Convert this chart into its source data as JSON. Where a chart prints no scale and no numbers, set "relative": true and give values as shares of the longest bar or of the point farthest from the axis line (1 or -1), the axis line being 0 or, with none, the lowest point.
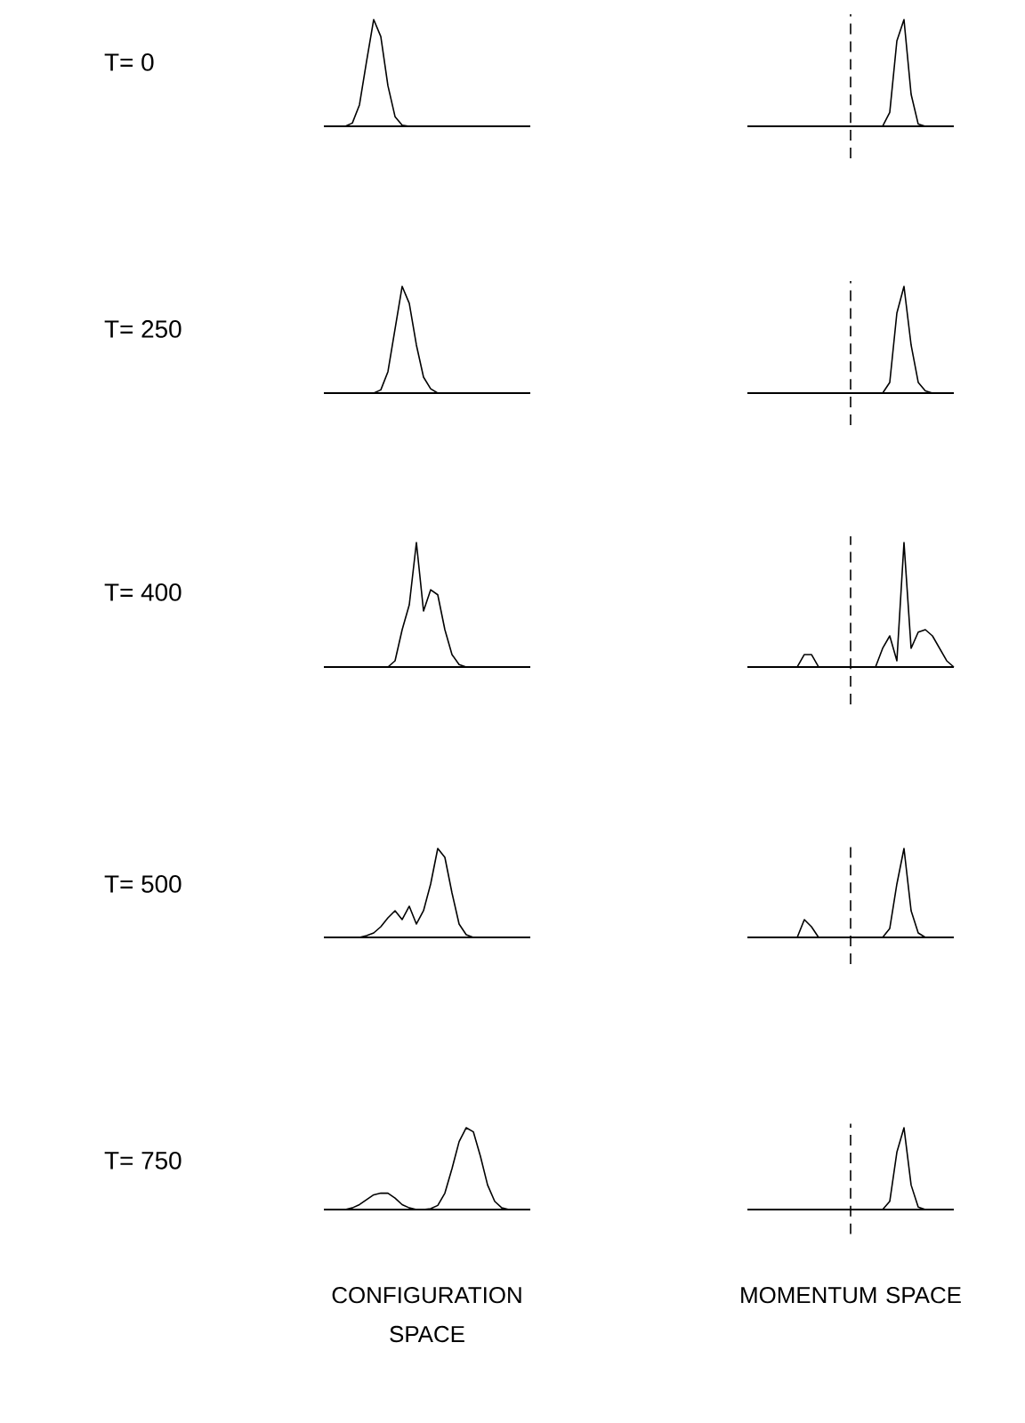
{
  "chart_data": [
    {
      "type": "line",
      "relative": true,
      "ylabel": "T= 0",
      "color": "#000000",
      "marker": "none",
      "categories": [
        null,
        null,
        null,
        null,
        null,
        null,
        null,
        null,
        null,
        null,
        null,
        null,
        null,
        null,
        null,
        null,
        null,
        null,
        null,
        null,
        null,
        null,
        null,
        null,
        null,
        null,
        null,
        null,
        null,
        null
      ],
      "values": [
        0,
        0,
        0,
        0,
        0.03,
        0.2,
        0.61,
        1,
        0.84,
        0.38,
        0.09,
        0.01,
        0,
        0,
        0,
        0,
        0,
        0,
        0,
        0,
        0,
        0,
        0,
        0,
        0,
        0,
        0,
        0,
        0,
        0
      ]
    },
    {
      "type": "line",
      "relative": true,
      "color": "#000000",
      "marker": "none",
      "categories": [
        null,
        null,
        null,
        null,
        null,
        null,
        null,
        null,
        null,
        null,
        null,
        null,
        null,
        null,
        null,
        null,
        null,
        null,
        null,
        null,
        null,
        null,
        null,
        null,
        null,
        null,
        null,
        null,
        null,
        null
      ],
      "values": [
        0,
        0,
        0,
        0,
        0,
        0,
        0,
        0,
        0,
        0,
        0,
        0,
        0,
        0,
        0,
        0,
        0,
        0,
        0,
        0,
        0.13,
        0.8,
        1,
        0.3,
        0.02,
        0,
        0,
        0,
        0,
        0
      ]
    },
    {
      "type": "line",
      "relative": true,
      "ylabel": "T= 250",
      "color": "#000000",
      "marker": "none",
      "categories": [
        null,
        null,
        null,
        null,
        null,
        null,
        null,
        null,
        null,
        null,
        null,
        null,
        null,
        null,
        null,
        null,
        null,
        null,
        null,
        null,
        null,
        null,
        null,
        null,
        null,
        null,
        null,
        null,
        null,
        null
      ],
      "values": [
        0,
        0,
        0,
        0,
        0,
        0,
        0,
        0,
        0.03,
        0.2,
        0.6,
        1,
        0.84,
        0.45,
        0.15,
        0.04,
        0,
        0,
        0,
        0,
        0,
        0,
        0,
        0,
        0,
        0,
        0,
        0,
        0,
        0
      ]
    },
    {
      "type": "line",
      "relative": true,
      "color": "#000000",
      "marker": "none",
      "categories": [
        null,
        null,
        null,
        null,
        null,
        null,
        null,
        null,
        null,
        null,
        null,
        null,
        null,
        null,
        null,
        null,
        null,
        null,
        null,
        null,
        null,
        null,
        null,
        null,
        null,
        null,
        null,
        null,
        null,
        null
      ],
      "values": [
        0,
        0,
        0,
        0,
        0,
        0,
        0,
        0,
        0,
        0,
        0,
        0,
        0,
        0,
        0,
        0,
        0,
        0,
        0,
        0,
        0.1,
        0.75,
        1,
        0.45,
        0.1,
        0.02,
        0,
        0,
        0,
        0
      ]
    },
    {
      "type": "line",
      "relative": true,
      "ylabel": "T= 400",
      "color": "#000000",
      "marker": "none",
      "categories": [
        null,
        null,
        null,
        null,
        null,
        null,
        null,
        null,
        null,
        null,
        null,
        null,
        null,
        null,
        null,
        null,
        null,
        null,
        null,
        null,
        null,
        null,
        null,
        null,
        null,
        null,
        null,
        null,
        null,
        null
      ],
      "values": [
        0,
        0,
        0,
        0,
        0,
        0,
        0,
        0,
        0,
        0,
        0.05,
        0.3,
        0.5,
        1,
        0.45,
        0.62,
        0.58,
        0.3,
        0.1,
        0.02,
        0,
        0,
        0,
        0,
        0,
        0,
        0,
        0,
        0,
        0
      ]
    },
    {
      "type": "line",
      "relative": true,
      "color": "#000000",
      "marker": "none",
      "categories": [
        null,
        null,
        null,
        null,
        null,
        null,
        null,
        null,
        null,
        null,
        null,
        null,
        null,
        null,
        null,
        null,
        null,
        null,
        null,
        null,
        null,
        null,
        null,
        null,
        null,
        null,
        null,
        null,
        null,
        null
      ],
      "values": [
        0,
        0,
        0,
        0,
        0,
        0,
        0,
        0,
        0.1,
        0.1,
        0,
        0,
        0,
        0,
        0,
        0,
        0,
        0,
        0,
        0.15,
        0.25,
        0.05,
        1,
        0.15,
        0.28,
        0.3,
        0.25,
        0.15,
        0.05,
        0
      ]
    },
    {
      "type": "line",
      "relative": true,
      "ylabel": "T= 500",
      "color": "#000000",
      "marker": "none",
      "categories": [
        null,
        null,
        null,
        null,
        null,
        null,
        null,
        null,
        null,
        null,
        null,
        null,
        null,
        null,
        null,
        null,
        null,
        null,
        null,
        null,
        null,
        null,
        null,
        null,
        null,
        null,
        null,
        null,
        null,
        null
      ],
      "values": [
        0,
        0,
        0,
        0,
        0,
        0,
        0.02,
        0.05,
        0.12,
        0.22,
        0.3,
        0.2,
        0.35,
        0.15,
        0.3,
        0.6,
        1,
        0.9,
        0.5,
        0.15,
        0.03,
        0,
        0,
        0,
        0,
        0,
        0,
        0,
        0,
        0
      ]
    },
    {
      "type": "line",
      "relative": true,
      "color": "#000000",
      "marker": "none",
      "categories": [
        null,
        null,
        null,
        null,
        null,
        null,
        null,
        null,
        null,
        null,
        null,
        null,
        null,
        null,
        null,
        null,
        null,
        null,
        null,
        null,
        null,
        null,
        null,
        null,
        null,
        null,
        null,
        null,
        null,
        null
      ],
      "values": [
        0,
        0,
        0,
        0,
        0,
        0,
        0,
        0,
        0.2,
        0.12,
        0,
        0,
        0,
        0,
        0,
        0,
        0,
        0,
        0,
        0,
        0.1,
        0.6,
        1,
        0.3,
        0.05,
        0,
        0,
        0,
        0,
        0
      ]
    },
    {
      "type": "line",
      "relative": true,
      "ylabel": "T= 750",
      "xlabel": "CONFIGURATION SPACE",
      "color": "#000000",
      "marker": "none",
      "categories": [
        null,
        null,
        null,
        null,
        null,
        null,
        null,
        null,
        null,
        null,
        null,
        null,
        null,
        null,
        null,
        null,
        null,
        null,
        null,
        null,
        null,
        null,
        null,
        null,
        null,
        null,
        null,
        null,
        null,
        null
      ],
      "values": [
        0,
        0,
        0,
        0,
        0.02,
        0.06,
        0.12,
        0.18,
        0.2,
        0.2,
        0.14,
        0.06,
        0.02,
        0,
        0,
        0.01,
        0.05,
        0.2,
        0.5,
        0.83,
        1,
        0.95,
        0.65,
        0.3,
        0.1,
        0.02,
        0,
        0,
        0,
        0
      ]
    },
    {
      "type": "line",
      "relative": true,
      "xlabel": "MOMENTUM SPACE",
      "color": "#000000",
      "marker": "none",
      "categories": [
        null,
        null,
        null,
        null,
        null,
        null,
        null,
        null,
        null,
        null,
        null,
        null,
        null,
        null,
        null,
        null,
        null,
        null,
        null,
        null,
        null,
        null,
        null,
        null,
        null,
        null,
        null,
        null,
        null,
        null
      ],
      "values": [
        0,
        0,
        0,
        0,
        0,
        0,
        0,
        0,
        0,
        0,
        0,
        0,
        0,
        0,
        0,
        0,
        0,
        0,
        0,
        0,
        0.1,
        0.7,
        1,
        0.3,
        0.03,
        0,
        0,
        0,
        0,
        0
      ]
    }
  ]
}
